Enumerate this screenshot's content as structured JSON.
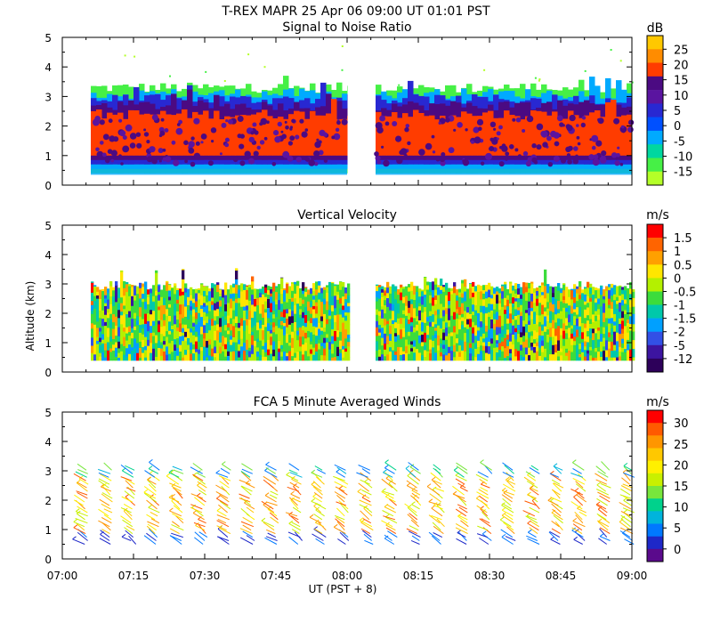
{
  "header": {
    "title": "T-REX  MAPR 25 Apr 06  09:00 UT  01:01  PST"
  },
  "axes": {
    "ylabel": "Altitude (km)",
    "xlabel": "UT  (PST + 8)",
    "x_ticks": [
      "07:00",
      "07:15",
      "07:30",
      "07:45",
      "08:00",
      "08:15",
      "08:30",
      "08:45",
      "09:00"
    ],
    "y_ticks": [
      "0",
      "1",
      "2",
      "3",
      "4",
      "5"
    ],
    "x_range_hours": [
      7.0,
      9.0
    ],
    "y_range_km": [
      0,
      5
    ]
  },
  "chart_data": [
    {
      "type": "heatmap",
      "title": "Signal to Noise Ratio",
      "unit": "dB",
      "xlim": [
        7.0,
        9.0
      ],
      "ylim": [
        0,
        5
      ],
      "data_gap_hours": [
        8.0,
        8.1
      ],
      "colorbar_ticks": [
        "25",
        "20",
        "15",
        "10",
        "5",
        "0",
        "-5",
        "-10",
        "-15"
      ],
      "colorbar_colors": [
        "#ffc800",
        "#ff8c00",
        "#ff3c00",
        "#4b0a82",
        "#5a14a0",
        "#2828d2",
        "#0050ff",
        "#00aaff",
        "#00d7a0",
        "#46f046",
        "#b4ff28"
      ],
      "layers": [
        {
          "color": "#46f046",
          "top_km": 3.3
        },
        {
          "color": "#00aaff",
          "top_km": 3.1
        },
        {
          "color": "#2828d2",
          "top_km": 2.9
        },
        {
          "color": "#4b0a82",
          "top_km": 2.7
        },
        {
          "color": "#ff3c00",
          "top_km": 2.4
        }
      ]
    },
    {
      "type": "heatmap",
      "title": "Vertical Velocity",
      "unit": "m/s",
      "xlim": [
        7.0,
        9.0
      ],
      "ylim": [
        0,
        5
      ],
      "data_gap_hours": [
        8.0,
        8.1
      ],
      "colorbar_ticks": [
        "1.5",
        "1",
        "0.5",
        "0",
        "-0.5",
        "-1",
        "-1.5",
        "-2",
        "-5",
        "-12"
      ],
      "colorbar_colors": [
        "#ff0000",
        "#ff6400",
        "#ffa000",
        "#ffe600",
        "#b4f000",
        "#3cdc3c",
        "#00c8aa",
        "#00a0ff",
        "#3250e6",
        "#3c14a0",
        "#2d005a"
      ],
      "data_top_km": 3.1
    },
    {
      "type": "scatter",
      "title": "FCA 5 Minute Averaged Winds",
      "unit": "m/s",
      "xlim": [
        7.0,
        9.0
      ],
      "ylim": [
        0,
        5
      ],
      "profile_times_hours": [
        7.083,
        7.167,
        7.25,
        7.333,
        7.417,
        7.5,
        7.583,
        7.667,
        7.75,
        7.833,
        7.917,
        8.0,
        8.083,
        8.167,
        8.25,
        8.333,
        8.417,
        8.5,
        8.583,
        8.667,
        8.75,
        8.833,
        8.917,
        9.0
      ],
      "colorbar_ticks": [
        "30",
        "25",
        "20",
        "15",
        "10",
        "5",
        "0"
      ],
      "colorbar_colors": [
        "#ff0000",
        "#ff5a00",
        "#ff9600",
        "#ffc800",
        "#fff000",
        "#c8f000",
        "#78e63c",
        "#00d28c",
        "#00b4dc",
        "#0078ff",
        "#1e28c8",
        "#5a0a8c"
      ]
    }
  ]
}
